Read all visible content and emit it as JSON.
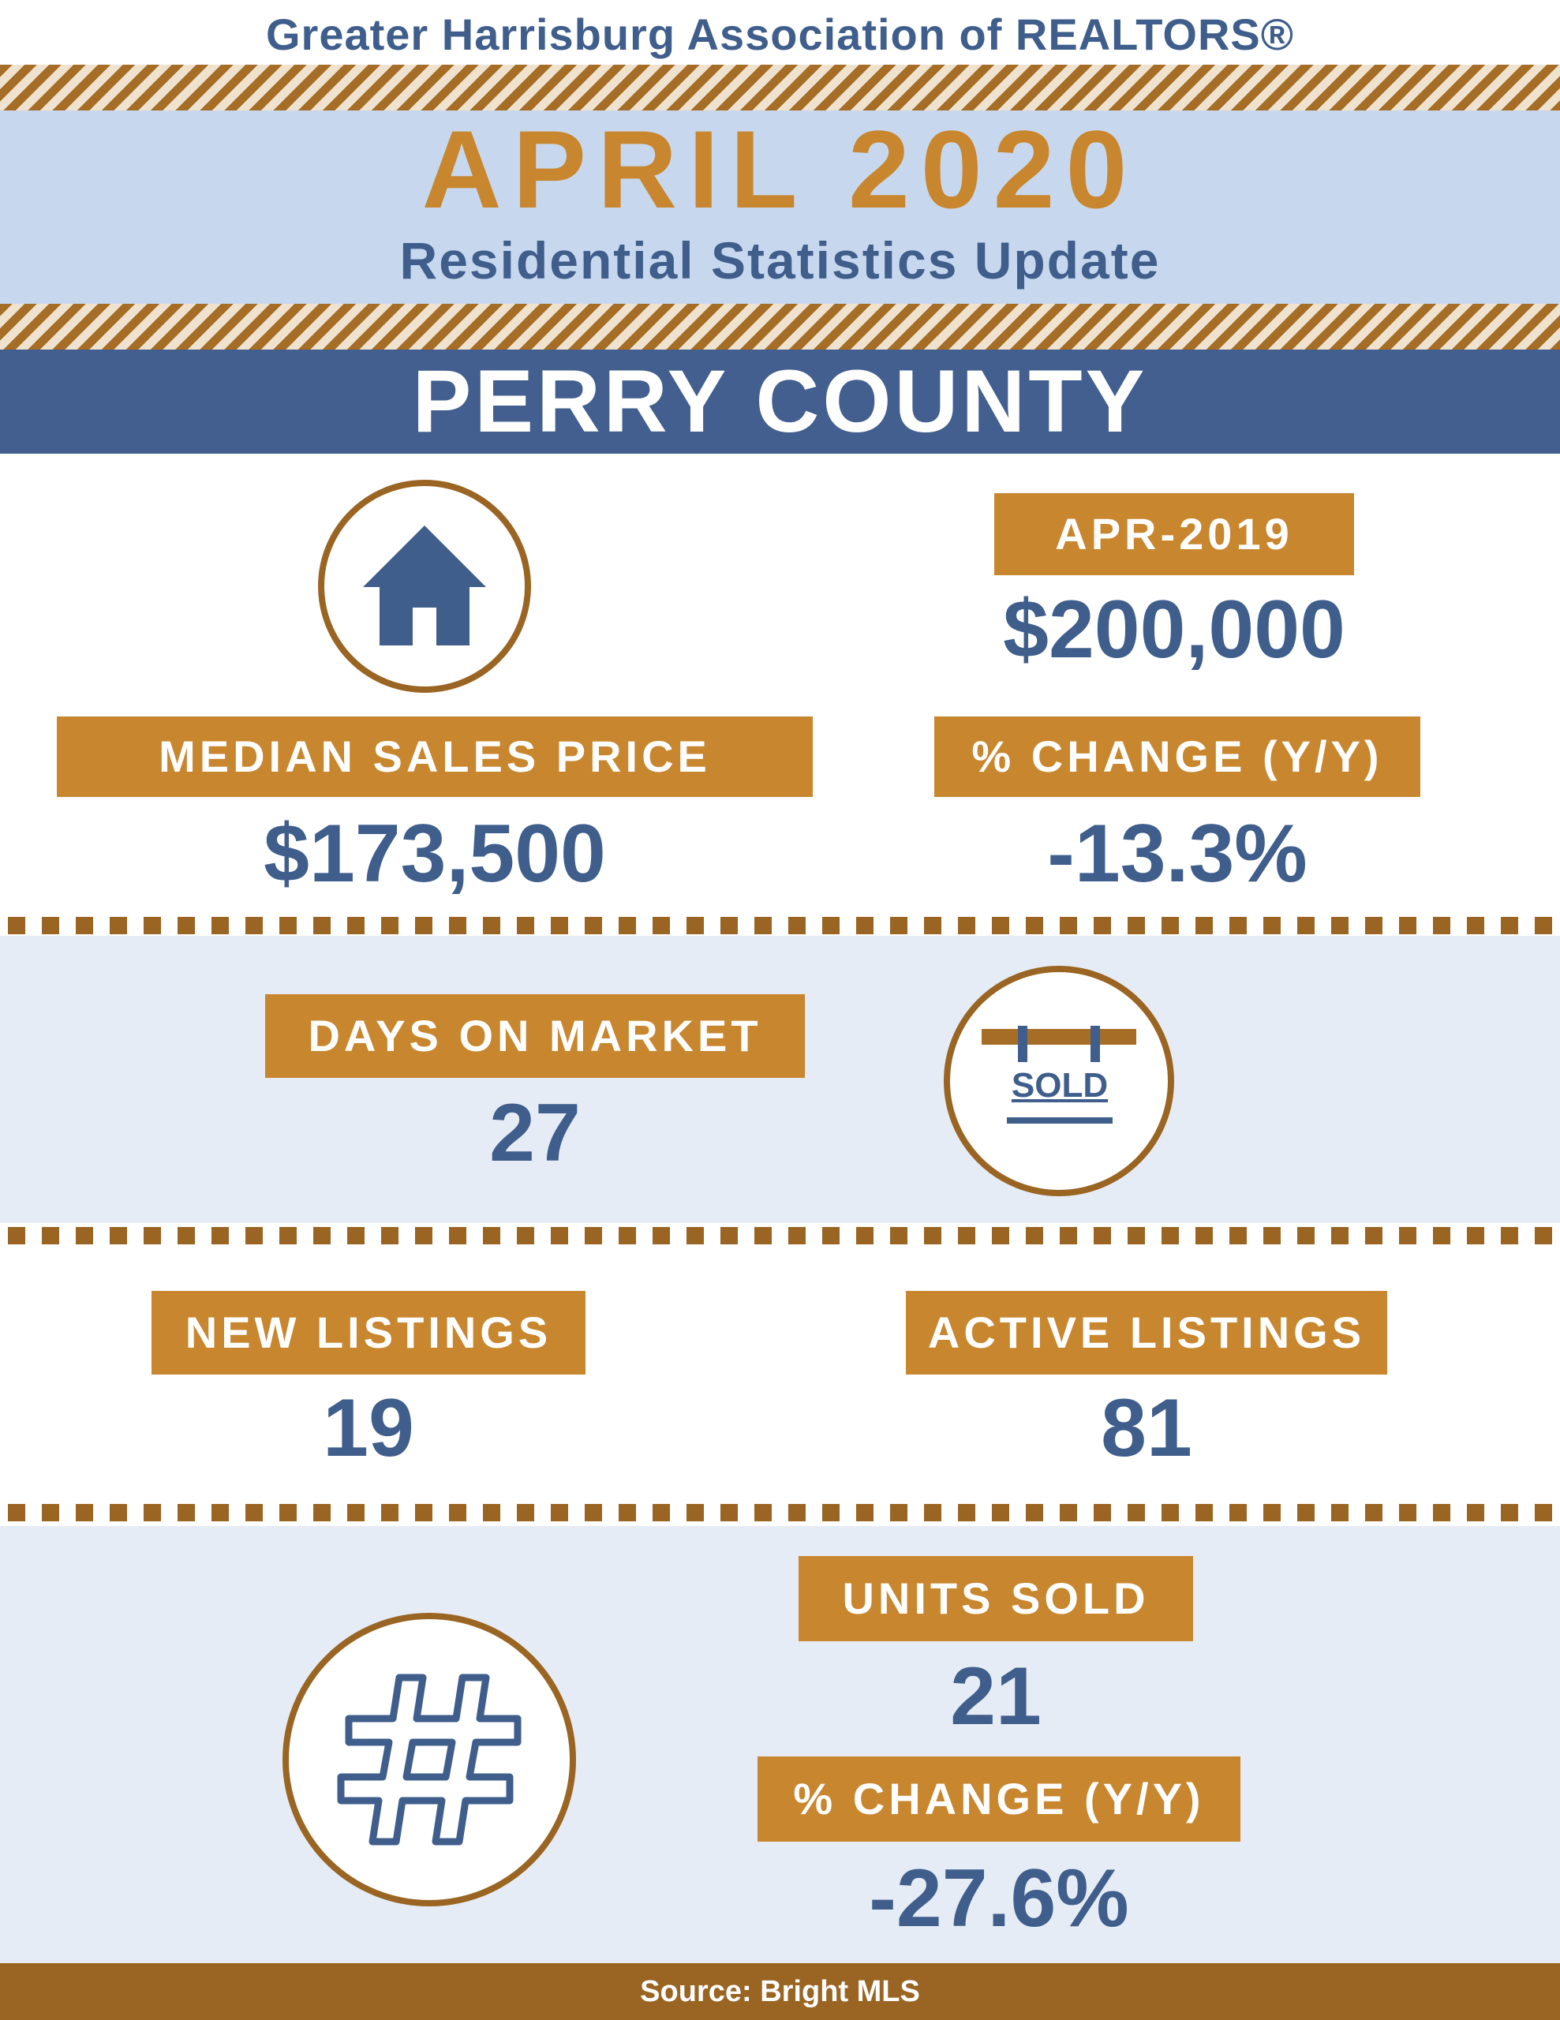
{
  "header": {
    "organization": "Greater Harrisburg Association of REALTORS®",
    "month": "APRIL 2020",
    "subtitle": "Residential Statistics Update",
    "county": "PERRY COUNTY"
  },
  "median": {
    "label": "MEDIAN SALES PRICE",
    "value": "$173,500",
    "prior_label": "APR-2019",
    "prior_value": "$200,000",
    "change_label": "% CHANGE (Y/Y)",
    "change_value": "-13.3%"
  },
  "days_on_market": {
    "label": "DAYS ON MARKET",
    "value": "27",
    "sign_text": "SOLD"
  },
  "listings": {
    "new_label": "NEW LISTINGS",
    "new_value": "19",
    "active_label": "ACTIVE LISTINGS",
    "active_value": "81"
  },
  "units": {
    "label": "UNITS SOLD",
    "value": "21",
    "change_label": "% CHANGE (Y/Y)",
    "change_value": "-27.6%"
  },
  "footer": {
    "source": "Source: Bright MLS"
  },
  "colors": {
    "navy": "#3f5e8c",
    "gold": "#c8862e",
    "brown": "#9a6523",
    "light_blue": "#c7d8ee",
    "band": "#e6ecf5"
  },
  "icons": [
    "house-icon",
    "sold-sign-icon",
    "hashtag-icon"
  ]
}
